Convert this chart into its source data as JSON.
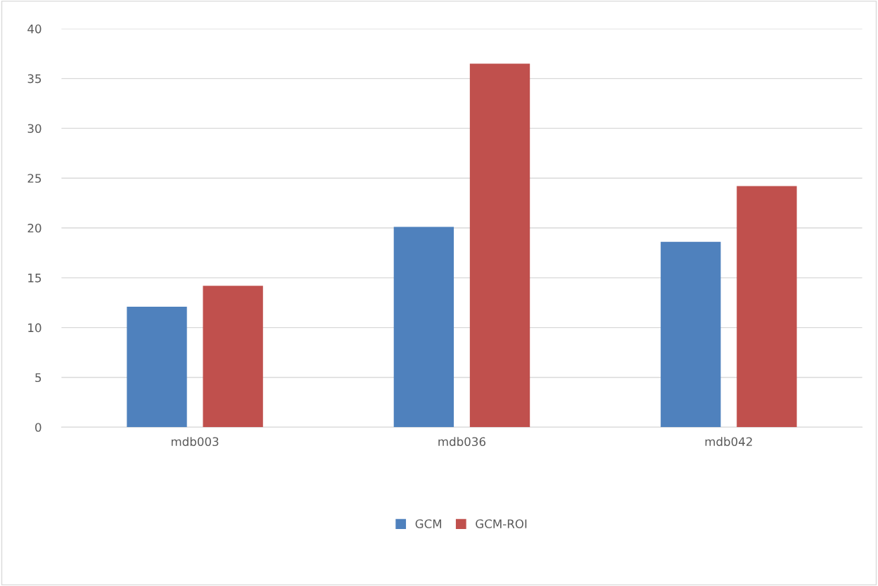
{
  "chart_data": {
    "type": "bar",
    "categories": [
      "mdb003",
      "mdb036",
      "mdb042"
    ],
    "series": [
      {
        "name": "GCM",
        "color": "#4f81bd",
        "values": [
          12.1,
          20.1,
          18.6
        ]
      },
      {
        "name": "GCM-ROI",
        "color": "#c0504d",
        "values": [
          14.2,
          36.5,
          24.2
        ]
      }
    ],
    "ylim": [
      0,
      40
    ],
    "yticks": [
      0,
      5,
      10,
      15,
      20,
      25,
      30,
      35,
      40
    ],
    "grid": "y",
    "legend": "bottom"
  }
}
